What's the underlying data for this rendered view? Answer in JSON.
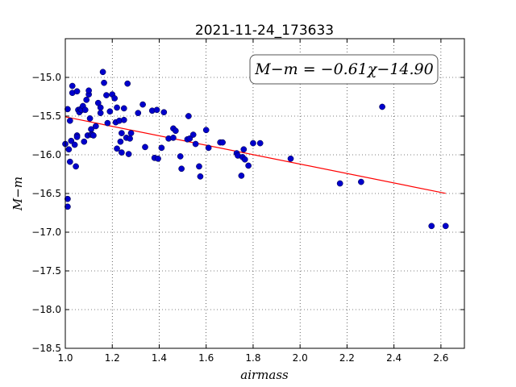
{
  "chart_data": {
    "type": "scatter",
    "title": "2021-11-24_173633",
    "xlabel": "airmass",
    "ylabel": "M−m",
    "xlim": [
      1.0,
      2.7
    ],
    "ylim": [
      -18.5,
      -14.5
    ],
    "y_inverted": true,
    "grid": true,
    "x_ticks": [
      1.0,
      1.2,
      1.4,
      1.6,
      1.8,
      2.0,
      2.2,
      2.4,
      2.6
    ],
    "y_ticks": [
      -15.0,
      -15.5,
      -16.0,
      -16.5,
      -17.0,
      -17.5,
      -18.0,
      -18.5
    ],
    "x_tick_labels": [
      "1.0",
      "1.2",
      "1.4",
      "1.6",
      "1.8",
      "2.0",
      "2.2",
      "2.4",
      "2.6"
    ],
    "y_tick_labels": [
      "−15.0",
      "−15.5",
      "−16.0",
      "−16.5",
      "−17.0",
      "−17.5",
      "−18.0",
      "−18.5"
    ],
    "annotation": "M−m = −0.61χ−14.90",
    "fit": {
      "slope": -0.61,
      "intercept": -14.9,
      "x_range": [
        1.0,
        2.62
      ],
      "color": "#ff0000"
    },
    "point_color": "#0000cc",
    "points": [
      [
        1.0,
        -15.86
      ],
      [
        1.01,
        -15.41
      ],
      [
        1.01,
        -16.57
      ],
      [
        1.01,
        -16.67
      ],
      [
        1.015,
        -15.93
      ],
      [
        1.02,
        -15.56
      ],
      [
        1.02,
        -16.09
      ],
      [
        1.025,
        -15.82
      ],
      [
        1.03,
        -15.11
      ],
      [
        1.03,
        -15.2
      ],
      [
        1.04,
        -15.87
      ],
      [
        1.045,
        -16.15
      ],
      [
        1.05,
        -15.75
      ],
      [
        1.05,
        -15.77
      ],
      [
        1.05,
        -15.18
      ],
      [
        1.055,
        -15.42
      ],
      [
        1.06,
        -15.45
      ],
      [
        1.065,
        -15.41
      ],
      [
        1.07,
        -15.42
      ],
      [
        1.075,
        -15.37
      ],
      [
        1.08,
        -15.83
      ],
      [
        1.085,
        -15.42
      ],
      [
        1.09,
        -15.29
      ],
      [
        1.095,
        -15.75
      ],
      [
        1.1,
        -15.22
      ],
      [
        1.1,
        -15.17
      ],
      [
        1.105,
        -15.53
      ],
      [
        1.11,
        -15.67
      ],
      [
        1.11,
        -15.74
      ],
      [
        1.115,
        -15.74
      ],
      [
        1.12,
        -15.75
      ],
      [
        1.13,
        -15.63
      ],
      [
        1.14,
        -15.33
      ],
      [
        1.15,
        -15.39
      ],
      [
        1.15,
        -15.46
      ],
      [
        1.16,
        -14.93
      ],
      [
        1.165,
        -15.07
      ],
      [
        1.175,
        -15.23
      ],
      [
        1.18,
        -15.59
      ],
      [
        1.19,
        -15.44
      ],
      [
        1.2,
        -15.22
      ],
      [
        1.21,
        -15.27
      ],
      [
        1.215,
        -15.58
      ],
      [
        1.22,
        -15.39
      ],
      [
        1.22,
        -15.92
      ],
      [
        1.23,
        -15.56
      ],
      [
        1.235,
        -15.83
      ],
      [
        1.24,
        -15.97
      ],
      [
        1.24,
        -15.72
      ],
      [
        1.25,
        -15.4
      ],
      [
        1.25,
        -15.55
      ],
      [
        1.26,
        -15.78
      ],
      [
        1.265,
        -15.08
      ],
      [
        1.27,
        -15.99
      ],
      [
        1.275,
        -15.79
      ],
      [
        1.28,
        -15.72
      ],
      [
        1.31,
        -15.46
      ],
      [
        1.33,
        -15.35
      ],
      [
        1.34,
        -15.9
      ],
      [
        1.37,
        -15.43
      ],
      [
        1.38,
        -16.04
      ],
      [
        1.39,
        -15.42
      ],
      [
        1.395,
        -16.05
      ],
      [
        1.41,
        -15.91
      ],
      [
        1.42,
        -15.45
      ],
      [
        1.44,
        -15.79
      ],
      [
        1.46,
        -15.66
      ],
      [
        1.46,
        -15.78
      ],
      [
        1.47,
        -15.69
      ],
      [
        1.49,
        -16.02
      ],
      [
        1.495,
        -16.18
      ],
      [
        1.52,
        -15.8
      ],
      [
        1.525,
        -15.5
      ],
      [
        1.53,
        -15.79
      ],
      [
        1.545,
        -15.74
      ],
      [
        1.555,
        -15.86
      ],
      [
        1.57,
        -16.15
      ],
      [
        1.575,
        -16.28
      ],
      [
        1.6,
        -15.68
      ],
      [
        1.61,
        -15.91
      ],
      [
        1.66,
        -15.84
      ],
      [
        1.67,
        -15.84
      ],
      [
        1.73,
        -15.98
      ],
      [
        1.735,
        -16.01
      ],
      [
        1.75,
        -16.27
      ],
      [
        1.755,
        -16.03
      ],
      [
        1.76,
        -15.93
      ],
      [
        1.765,
        -16.06
      ],
      [
        1.78,
        -16.14
      ],
      [
        1.8,
        -15.85
      ],
      [
        1.83,
        -15.85
      ],
      [
        1.96,
        -16.05
      ],
      [
        2.17,
        -16.37
      ],
      [
        2.26,
        -16.35
      ],
      [
        2.35,
        -15.38
      ],
      [
        2.56,
        -16.92
      ],
      [
        2.62,
        -16.92
      ]
    ]
  }
}
